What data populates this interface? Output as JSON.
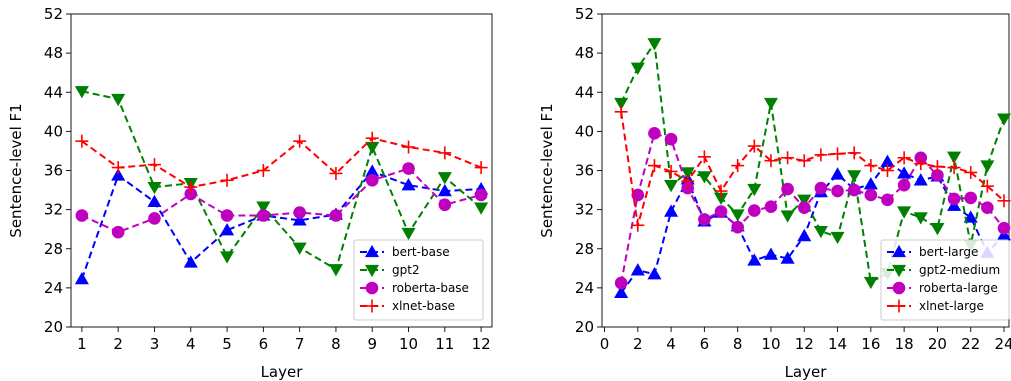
{
  "chart_data": [
    {
      "type": "line",
      "title": "",
      "xlabel": "Layer",
      "ylabel": "Sentence-level F1",
      "xlim": [
        0.7,
        12.3
      ],
      "ylim": [
        20,
        52
      ],
      "xticks": [
        1,
        2,
        3,
        4,
        5,
        6,
        7,
        8,
        9,
        10,
        11,
        12
      ],
      "yticks": [
        20,
        24,
        28,
        32,
        36,
        40,
        44,
        48,
        52
      ],
      "legend_position": "lower-right",
      "grid": false,
      "x": [
        1,
        2,
        3,
        4,
        5,
        6,
        7,
        8,
        9,
        10,
        11,
        12
      ],
      "series": [
        {
          "name": "bert-base",
          "color": "#0000ff",
          "marker": "triangle-up",
          "values": [
            24.9,
            35.5,
            32.8,
            26.6,
            29.9,
            31.4,
            30.9,
            31.5,
            35.9,
            34.5,
            33.9,
            34.1
          ]
        },
        {
          "name": "gpt2",
          "color": "#008000",
          "marker": "triangle-down",
          "values": [
            44.1,
            43.3,
            34.3,
            34.7,
            27.2,
            32.3,
            28.1,
            25.9,
            38.4,
            29.6,
            35.3,
            32.2
          ]
        },
        {
          "name": "roberta-base",
          "color": "#bf00bf",
          "marker": "circle",
          "values": [
            31.4,
            29.7,
            31.1,
            33.6,
            31.4,
            31.4,
            31.7,
            31.4,
            35.0,
            36.2,
            32.5,
            33.5
          ]
        },
        {
          "name": "xlnet-base",
          "color": "#ff0000",
          "marker": "plus",
          "values": [
            39.0,
            36.3,
            36.6,
            34.3,
            35.0,
            36.0,
            39.0,
            35.7,
            39.3,
            38.4,
            37.8,
            36.3
          ]
        }
      ]
    },
    {
      "type": "line",
      "title": "",
      "xlabel": "Layer",
      "ylabel": "Sentence-level F1",
      "xlim": [
        -0.15,
        24.3
      ],
      "ylim": [
        20,
        52
      ],
      "xticks": [
        0,
        2,
        4,
        6,
        8,
        10,
        12,
        14,
        16,
        18,
        20,
        22,
        24
      ],
      "yticks": [
        20,
        24,
        28,
        32,
        36,
        40,
        44,
        48,
        52
      ],
      "legend_position": "lower-right",
      "grid": false,
      "x": [
        1,
        2,
        3,
        4,
        5,
        6,
        7,
        8,
        9,
        10,
        11,
        12,
        13,
        14,
        15,
        16,
        17,
        18,
        19,
        20,
        21,
        22,
        23,
        24
      ],
      "series": [
        {
          "name": "bert-large",
          "color": "#0000ff",
          "marker": "triangle-up",
          "values": [
            23.5,
            25.8,
            25.4,
            31.8,
            35.1,
            30.8,
            31.7,
            30.3,
            26.8,
            27.4,
            27.0,
            29.3,
            33.8,
            35.6,
            34.1,
            34.6,
            36.9,
            35.7,
            35.0,
            35.4,
            32.4,
            31.2,
            27.6,
            29.4
          ]
        },
        {
          "name": "gpt2-medium",
          "color": "#008000",
          "marker": "triangle-down",
          "values": [
            42.9,
            46.5,
            49.0,
            34.5,
            35.8,
            35.4,
            33.2,
            31.5,
            34.1,
            42.9,
            31.4,
            33.0,
            29.8,
            29.2,
            35.5,
            24.6,
            25.5,
            31.8,
            31.2,
            30.1,
            37.4,
            28.4,
            36.5,
            41.3
          ]
        },
        {
          "name": "roberta-large",
          "color": "#bf00bf",
          "marker": "circle",
          "values": [
            24.5,
            33.5,
            39.8,
            39.2,
            34.2,
            31.0,
            31.8,
            30.2,
            31.9,
            32.3,
            34.1,
            32.2,
            34.2,
            33.9,
            34.0,
            33.5,
            33.0,
            34.5,
            37.3,
            35.5,
            33.1,
            33.2,
            32.2,
            30.1
          ]
        },
        {
          "name": "xlnet-large",
          "color": "#ff0000",
          "marker": "plus",
          "values": [
            42.0,
            30.4,
            36.5,
            35.9,
            34.9,
            37.4,
            33.9,
            36.5,
            38.5,
            37.0,
            37.3,
            37.0,
            37.6,
            37.7,
            37.8,
            36.5,
            36.0,
            37.3,
            36.7,
            36.4,
            36.3,
            35.8,
            34.4,
            32.9
          ]
        }
      ]
    }
  ]
}
